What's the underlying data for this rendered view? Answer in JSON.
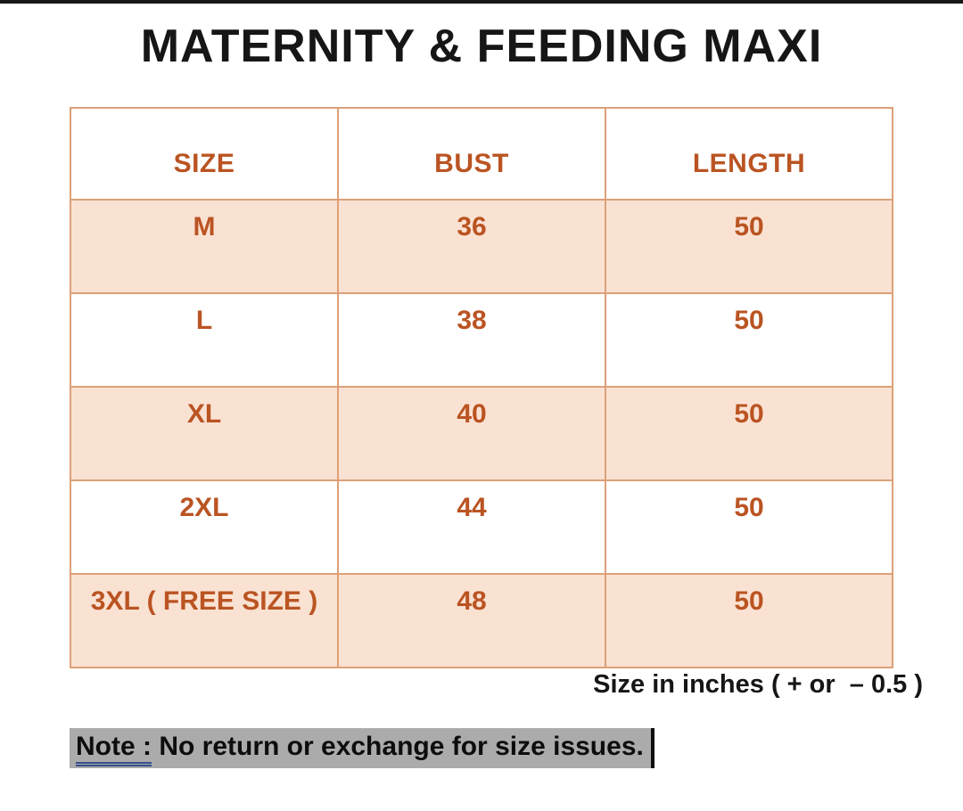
{
  "title": "MATERNITY & FEEDING MAXI",
  "table": {
    "headers": [
      "SIZE",
      "BUST",
      "LENGTH"
    ],
    "rows": [
      {
        "size": "M",
        "bust": "36",
        "length": "50"
      },
      {
        "size": "L",
        "bust": "38",
        "length": "50"
      },
      {
        "size": "XL",
        "bust": "40",
        "length": "50"
      },
      {
        "size": "2XL",
        "bust": "44",
        "length": "50"
      },
      {
        "size": "3XL ( FREE SIZE )",
        "bust": "48",
        "length": "50"
      }
    ]
  },
  "footnote": "Size in inches ( + or  – 0.5 )",
  "note": {
    "label": "Note :",
    "text": " No return or exchange for size issues."
  },
  "colors": {
    "accent_text": "#BA5422",
    "row_fill": "#FAE2D3",
    "table_border": "#DDA078",
    "note_highlight": "#ABABAB",
    "note_underline": "#35518C",
    "ink": "#161616"
  }
}
